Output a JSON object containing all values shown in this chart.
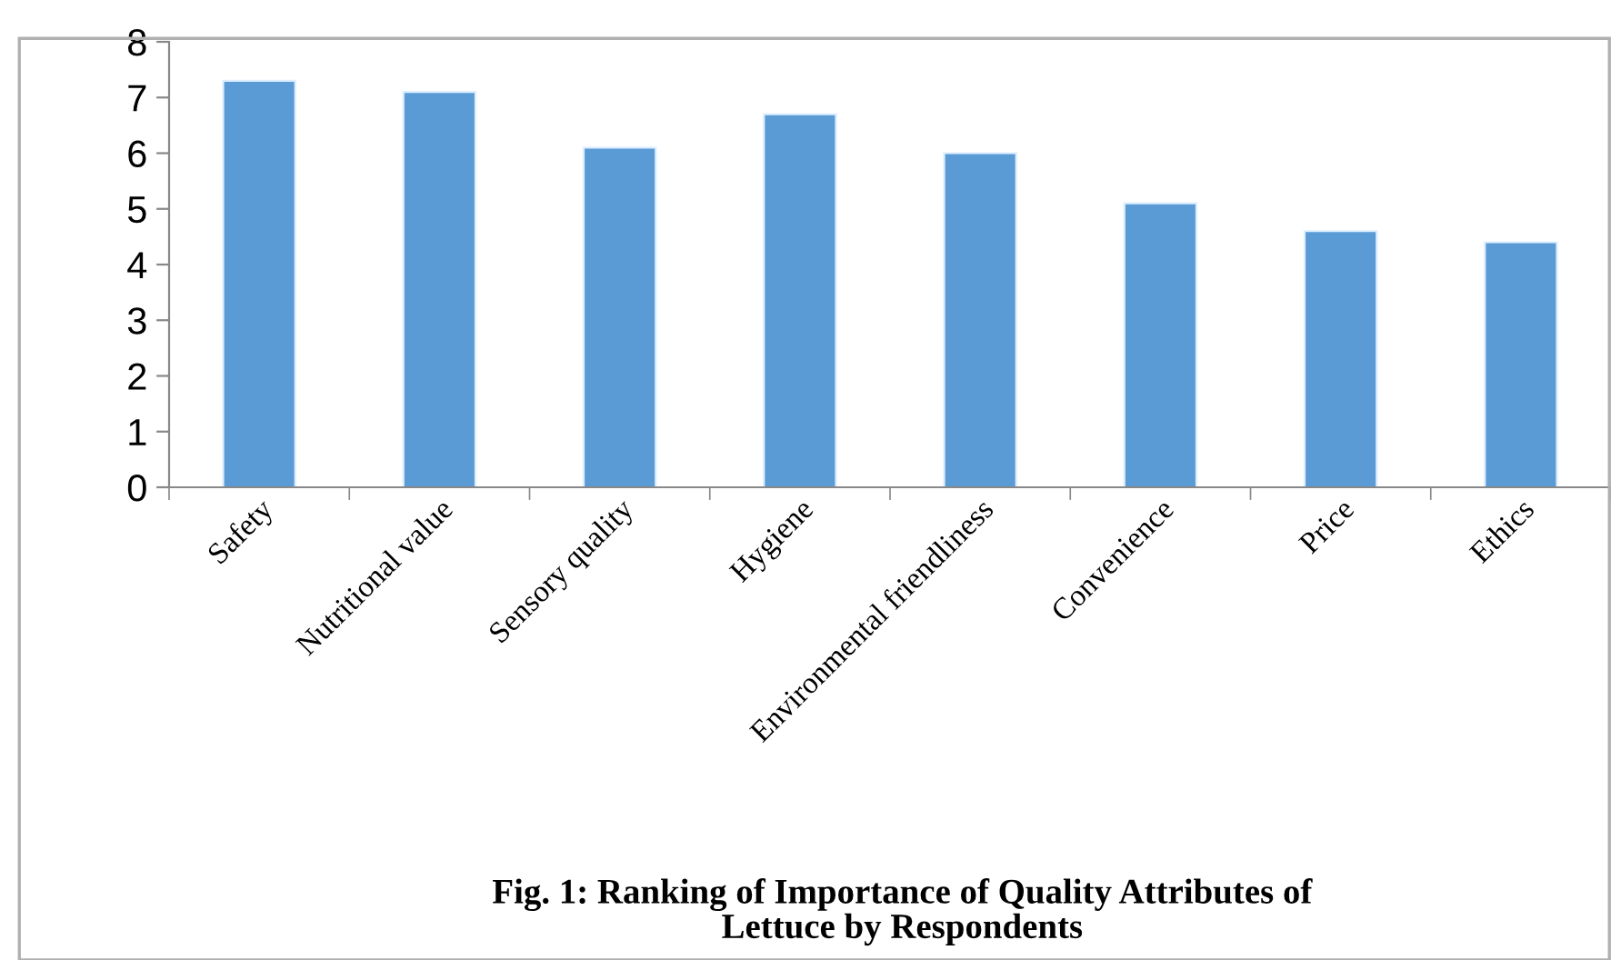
{
  "chart_data": {
    "type": "bar",
    "title": "Fig. 1: Ranking of Importance of Quality Attributes of\nLettuce by Respondents",
    "categories": [
      "Safety",
      "Nutritional value",
      "Sensory quality",
      "Hygiene",
      "Environmental friendliness",
      "Convenience",
      "Price",
      "Ethics"
    ],
    "values": [
      7.3,
      7.1,
      6.1,
      6.7,
      6.0,
      5.1,
      4.6,
      4.4
    ],
    "color": "#5b9bd5",
    "ylim": [
      0,
      8
    ],
    "yticks": [
      0,
      1,
      2,
      3,
      4,
      5,
      6,
      7,
      8
    ],
    "grid": false
  }
}
